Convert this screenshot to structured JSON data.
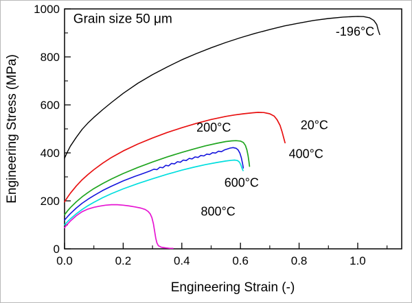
{
  "chart_data": {
    "type": "line",
    "title": "Grain size 50 μm",
    "xlabel": "Engineering Strain (-)",
    "ylabel": "Engineering Stress (MPa)",
    "xlim": [
      0,
      1.15
    ],
    "ylim": [
      0,
      1000
    ],
    "x_ticks": [
      0.0,
      0.2,
      0.4,
      0.6,
      0.8,
      1.0
    ],
    "x_minor_ticks": [
      0.1,
      0.3,
      0.5,
      0.7,
      0.9,
      1.1
    ],
    "y_ticks": [
      0,
      200,
      400,
      600,
      800,
      1000
    ],
    "y_minor_ticks": [
      100,
      300,
      500,
      700,
      900
    ],
    "grid": false,
    "legend": "inline-labels",
    "frame_color": "#000000",
    "series": [
      {
        "name": "-196°C",
        "color": "#000000",
        "width": 1.4,
        "points": [
          [
            0,
            378
          ],
          [
            0.01,
            405
          ],
          [
            0.02,
            428
          ],
          [
            0.04,
            465
          ],
          [
            0.06,
            498
          ],
          [
            0.08,
            525
          ],
          [
            0.1,
            548
          ],
          [
            0.13,
            580
          ],
          [
            0.16,
            610
          ],
          [
            0.2,
            648
          ],
          [
            0.25,
            690
          ],
          [
            0.3,
            726
          ],
          [
            0.35,
            758
          ],
          [
            0.4,
            788
          ],
          [
            0.45,
            814
          ],
          [
            0.5,
            838
          ],
          [
            0.55,
            860
          ],
          [
            0.6,
            880
          ],
          [
            0.65,
            898
          ],
          [
            0.7,
            914
          ],
          [
            0.75,
            929
          ],
          [
            0.8,
            941
          ],
          [
            0.85,
            952
          ],
          [
            0.9,
            960
          ],
          [
            0.95,
            966
          ],
          [
            1.0,
            969
          ],
          [
            1.02,
            968
          ],
          [
            1.04,
            963
          ],
          [
            1.055,
            952
          ],
          [
            1.065,
            935
          ],
          [
            1.07,
            912
          ],
          [
            1.075,
            893
          ]
        ]
      },
      {
        "name": "20°C",
        "color": "#e81010",
        "width": 1.7,
        "points": [
          [
            0,
            196
          ],
          [
            0.01,
            215
          ],
          [
            0.02,
            232
          ],
          [
            0.04,
            262
          ],
          [
            0.06,
            288
          ],
          [
            0.08,
            310
          ],
          [
            0.1,
            330
          ],
          [
            0.13,
            357
          ],
          [
            0.16,
            381
          ],
          [
            0.2,
            408
          ],
          [
            0.25,
            437
          ],
          [
            0.3,
            462
          ],
          [
            0.35,
            485
          ],
          [
            0.4,
            505
          ],
          [
            0.45,
            523
          ],
          [
            0.5,
            539
          ],
          [
            0.55,
            552
          ],
          [
            0.58,
            558
          ],
          [
            0.61,
            563
          ],
          [
            0.64,
            567
          ],
          [
            0.66,
            569
          ],
          [
            0.68,
            568
          ],
          [
            0.7,
            563
          ],
          [
            0.715,
            553
          ],
          [
            0.725,
            538
          ],
          [
            0.735,
            515
          ],
          [
            0.742,
            488
          ],
          [
            0.748,
            460
          ],
          [
            0.752,
            442
          ]
        ]
      },
      {
        "name": "200°C",
        "color": "#1fa51f",
        "width": 1.7,
        "points": [
          [
            0,
            142
          ],
          [
            0.01,
            158
          ],
          [
            0.02,
            172
          ],
          [
            0.04,
            196
          ],
          [
            0.06,
            217
          ],
          [
            0.08,
            235
          ],
          [
            0.1,
            251
          ],
          [
            0.13,
            272
          ],
          [
            0.16,
            291
          ],
          [
            0.2,
            314
          ],
          [
            0.25,
            339
          ],
          [
            0.3,
            362
          ],
          [
            0.35,
            383
          ],
          [
            0.4,
            402
          ],
          [
            0.44,
            416
          ],
          [
            0.48,
            429
          ],
          [
            0.52,
            440
          ],
          [
            0.55,
            447
          ],
          [
            0.57,
            450
          ],
          [
            0.585,
            451
          ],
          [
            0.6,
            449
          ],
          [
            0.61,
            443
          ],
          [
            0.617,
            431
          ],
          [
            0.622,
            412
          ],
          [
            0.626,
            388
          ],
          [
            0.629,
            362
          ],
          [
            0.631,
            344
          ]
        ]
      },
      {
        "name": "400°C",
        "color": "#1414dd",
        "width": 1.6,
        "points": [
          [
            0,
            120
          ],
          [
            0.01,
            134
          ],
          [
            0.02,
            147
          ],
          [
            0.04,
            170
          ],
          [
            0.06,
            190
          ],
          [
            0.08,
            207
          ],
          [
            0.1,
            222
          ],
          [
            0.13,
            243
          ],
          [
            0.16,
            261
          ],
          [
            0.2,
            283
          ],
          [
            0.24,
            302
          ],
          [
            0.27,
            315
          ],
          [
            0.29,
            324
          ],
          [
            0.305,
            332
          ],
          [
            0.315,
            330
          ],
          [
            0.325,
            340
          ],
          [
            0.335,
            338
          ],
          [
            0.345,
            348
          ],
          [
            0.355,
            346
          ],
          [
            0.365,
            356
          ],
          [
            0.375,
            354
          ],
          [
            0.385,
            363
          ],
          [
            0.395,
            361
          ],
          [
            0.405,
            370
          ],
          [
            0.415,
            368
          ],
          [
            0.425,
            377
          ],
          [
            0.435,
            375
          ],
          [
            0.445,
            383
          ],
          [
            0.455,
            381
          ],
          [
            0.465,
            389
          ],
          [
            0.475,
            387
          ],
          [
            0.485,
            395
          ],
          [
            0.495,
            393
          ],
          [
            0.505,
            401
          ],
          [
            0.515,
            399
          ],
          [
            0.525,
            407
          ],
          [
            0.535,
            405
          ],
          [
            0.545,
            412
          ],
          [
            0.555,
            416
          ],
          [
            0.565,
            420
          ],
          [
            0.575,
            422
          ],
          [
            0.585,
            419
          ],
          [
            0.592,
            412
          ],
          [
            0.598,
            399
          ],
          [
            0.603,
            379
          ],
          [
            0.607,
            356
          ],
          [
            0.61,
            337
          ]
        ]
      },
      {
        "name": "600°C",
        "color": "#00dede",
        "width": 1.7,
        "points": [
          [
            0,
            100
          ],
          [
            0.01,
            113
          ],
          [
            0.02,
            125
          ],
          [
            0.04,
            146
          ],
          [
            0.06,
            164
          ],
          [
            0.08,
            180
          ],
          [
            0.1,
            194
          ],
          [
            0.13,
            213
          ],
          [
            0.16,
            230
          ],
          [
            0.2,
            250
          ],
          [
            0.25,
            272
          ],
          [
            0.3,
            292
          ],
          [
            0.35,
            311
          ],
          [
            0.4,
            328
          ],
          [
            0.44,
            340
          ],
          [
            0.48,
            351
          ],
          [
            0.52,
            360
          ],
          [
            0.55,
            366
          ],
          [
            0.57,
            369
          ],
          [
            0.58,
            370
          ],
          [
            0.59,
            368
          ],
          [
            0.597,
            361
          ],
          [
            0.602,
            348
          ],
          [
            0.606,
            334
          ],
          [
            0.609,
            326
          ]
        ]
      },
      {
        "name": "800°C",
        "color": "#e614d2",
        "width": 1.7,
        "points": [
          [
            0,
            88
          ],
          [
            0.01,
            103
          ],
          [
            0.02,
            116
          ],
          [
            0.04,
            138
          ],
          [
            0.06,
            155
          ],
          [
            0.08,
            166
          ],
          [
            0.1,
            173
          ],
          [
            0.12,
            178
          ],
          [
            0.14,
            182
          ],
          [
            0.16,
            184
          ],
          [
            0.18,
            184
          ],
          [
            0.2,
            182
          ],
          [
            0.22,
            179
          ],
          [
            0.24,
            175
          ],
          [
            0.26,
            170
          ],
          [
            0.275,
            164
          ],
          [
            0.285,
            156
          ],
          [
            0.292,
            146
          ],
          [
            0.298,
            130
          ],
          [
            0.303,
            105
          ],
          [
            0.307,
            75
          ],
          [
            0.311,
            45
          ],
          [
            0.315,
            25
          ],
          [
            0.32,
            13
          ],
          [
            0.33,
            7
          ],
          [
            0.345,
            4
          ],
          [
            0.36,
            2
          ],
          [
            0.37,
            2
          ]
        ]
      }
    ],
    "annotations": [
      {
        "text": "Grain size 50 μm",
        "x": 0.03,
        "y": 942,
        "anchor": "start",
        "size": 19,
        "color": "#000000"
      },
      {
        "text": "-196°C",
        "x": 0.925,
        "y": 888,
        "anchor": "start",
        "size": 18,
        "color": "#000000"
      },
      {
        "text": "20°C",
        "x": 0.805,
        "y": 498,
        "anchor": "start",
        "size": 18,
        "color": "#000000"
      },
      {
        "text": "200°C",
        "x": 0.45,
        "y": 488,
        "anchor": "start",
        "size": 18,
        "color": "#000000"
      },
      {
        "text": "400°C",
        "x": 0.765,
        "y": 378,
        "anchor": "start",
        "size": 18,
        "color": "#000000"
      },
      {
        "text": "600°C",
        "x": 0.545,
        "y": 258,
        "anchor": "start",
        "size": 18,
        "color": "#000000"
      },
      {
        "text": "800°C",
        "x": 0.465,
        "y": 138,
        "anchor": "start",
        "size": 18,
        "color": "#000000"
      }
    ]
  }
}
